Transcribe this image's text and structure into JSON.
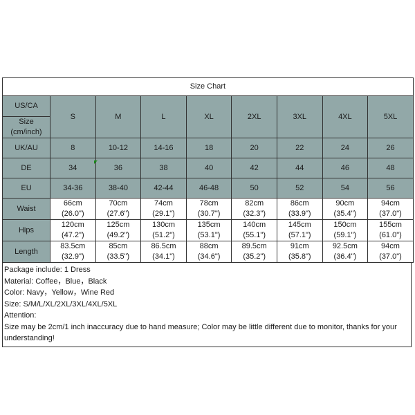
{
  "title": "Size Chart",
  "header": {
    "us_ca": "US/CA",
    "size_label": "Size (cm/inch)"
  },
  "sizes": [
    "S",
    "M",
    "L",
    "XL",
    "2XL",
    "3XL",
    "4XL",
    "5XL"
  ],
  "rows": {
    "uk_au": {
      "label": "UK/AU",
      "values": [
        "8",
        "10-12",
        "14-16",
        "18",
        "20",
        "22",
        "24",
        "26"
      ]
    },
    "de": {
      "label": "DE",
      "values": [
        "34",
        "36",
        "38",
        "40",
        "42",
        "44",
        "46",
        "48"
      ]
    },
    "eu": {
      "label": "EU",
      "values": [
        "34-36",
        "38-40",
        "42-44",
        "46-48",
        "50",
        "52",
        "54",
        "56"
      ]
    },
    "waist": {
      "label": "Waist",
      "cm": [
        "66cm",
        "70cm",
        "74cm",
        "78cm",
        "82cm",
        "86cm",
        "90cm",
        "94cm"
      ],
      "inch": [
        "(26.0\")",
        "(27.6\")",
        "(29.1\")",
        "(30.7\")",
        "(32.3\")",
        "(33.9\")",
        "(35.4\")",
        "(37.0\")"
      ]
    },
    "hips": {
      "label": "Hips",
      "cm": [
        "120cm",
        "125cm",
        "130cm",
        "135cm",
        "140cm",
        "145cm",
        "150cm",
        "155cm"
      ],
      "inch": [
        "(47.2\")",
        "(49.2\")",
        "(51.2\")",
        "(53.1\")",
        "(55.1\")",
        "(57.1\")",
        "(59.1\")",
        "(61.0\")"
      ]
    },
    "length": {
      "label": "Length",
      "cm": [
        "83.5cm",
        "85cm",
        "86.5cm",
        "88cm",
        "89.5cm",
        "91cm",
        "92.5cm",
        "94cm"
      ],
      "inch": [
        "(32.9\")",
        "(33.5\")",
        "(34.1\")",
        "(34.6\")",
        "(35.2\")",
        "(35.8\")",
        "(36.4\")",
        "(37.0\")"
      ]
    }
  },
  "notes": [
    "Package include: 1 Dress",
    "Material: Coffee，Blue，Black",
    "Color: Navy，Yellow，Wine Red",
    "Size: S/M/L/XL/2XL/3XL/4XL/5XL",
    "Attention:",
    "Size may be 2cm/1 inch inaccuracy due to hand measure; Color may be little different due to monitor, thanks for your understanding!"
  ],
  "colors": {
    "header_fill": "#92a8a8",
    "border": "#333333"
  }
}
